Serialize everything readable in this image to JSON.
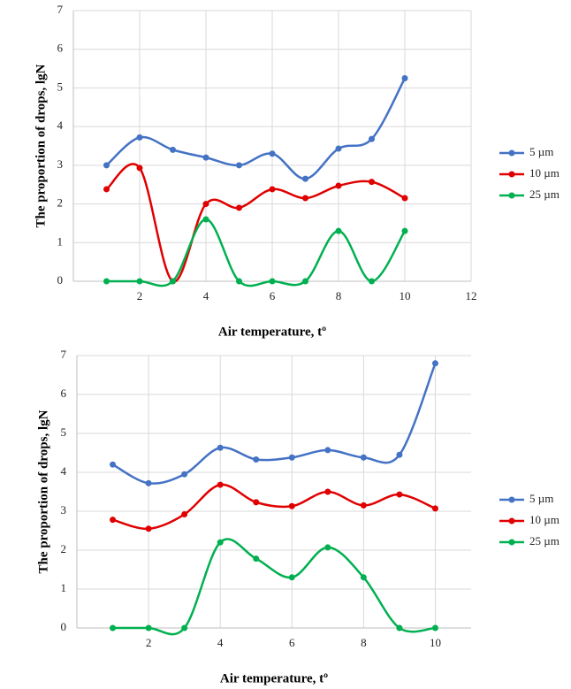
{
  "chart_data": [
    {
      "type": "line",
      "x_label": "Air temperature, tº",
      "y_label": "The proportion of drops, lgN",
      "x": [
        1,
        2,
        3,
        4,
        5,
        6,
        7,
        8,
        9,
        10
      ],
      "series": [
        {
          "name": "5 µm",
          "color": "#4472c4",
          "values": [
            3.0,
            3.72,
            3.4,
            3.2,
            3.0,
            3.3,
            2.65,
            3.43,
            3.68,
            5.25
          ]
        },
        {
          "name": "10 µm",
          "color": "#e00000",
          "values": [
            2.38,
            2.93,
            0,
            2.0,
            1.9,
            2.38,
            2.15,
            2.47,
            2.57,
            2.15
          ]
        },
        {
          "name": "25 µm",
          "color": "#00b050",
          "values": [
            0,
            0,
            0,
            1.6,
            0,
            0,
            0,
            1.3,
            0,
            1.3
          ]
        }
      ],
      "xlim": [
        0,
        12
      ],
      "ylim": [
        0,
        7
      ],
      "xticks": [
        2,
        4,
        6,
        8,
        10,
        12
      ],
      "yticks": [
        0,
        1,
        2,
        3,
        4,
        5,
        6,
        7
      ],
      "grid": true,
      "legend": "right",
      "smooth": true
    },
    {
      "type": "line",
      "x_label": "Air temperature, tº",
      "y_label": "The proportion of drops, lgN",
      "x": [
        1,
        2,
        3,
        4,
        5,
        6,
        7,
        8,
        9,
        10
      ],
      "series": [
        {
          "name": "5 µm",
          "color": "#4472c4",
          "values": [
            4.2,
            3.72,
            3.95,
            4.63,
            4.33,
            4.38,
            4.57,
            4.38,
            4.45,
            6.8
          ]
        },
        {
          "name": "10 µm",
          "color": "#e00000",
          "values": [
            2.78,
            2.55,
            2.92,
            3.68,
            3.23,
            3.13,
            3.5,
            3.15,
            3.43,
            3.07
          ]
        },
        {
          "name": "25 µm",
          "color": "#00b050",
          "values": [
            0,
            0,
            0,
            2.2,
            1.78,
            1.3,
            2.07,
            1.3,
            0,
            0
          ]
        }
      ],
      "xlim": [
        0,
        11
      ],
      "ylim": [
        0,
        7
      ],
      "xticks": [
        2,
        4,
        6,
        8,
        10
      ],
      "yticks": [
        0,
        1,
        2,
        3,
        4,
        5,
        6,
        7
      ],
      "grid": true,
      "legend": "right",
      "smooth": true
    }
  ]
}
